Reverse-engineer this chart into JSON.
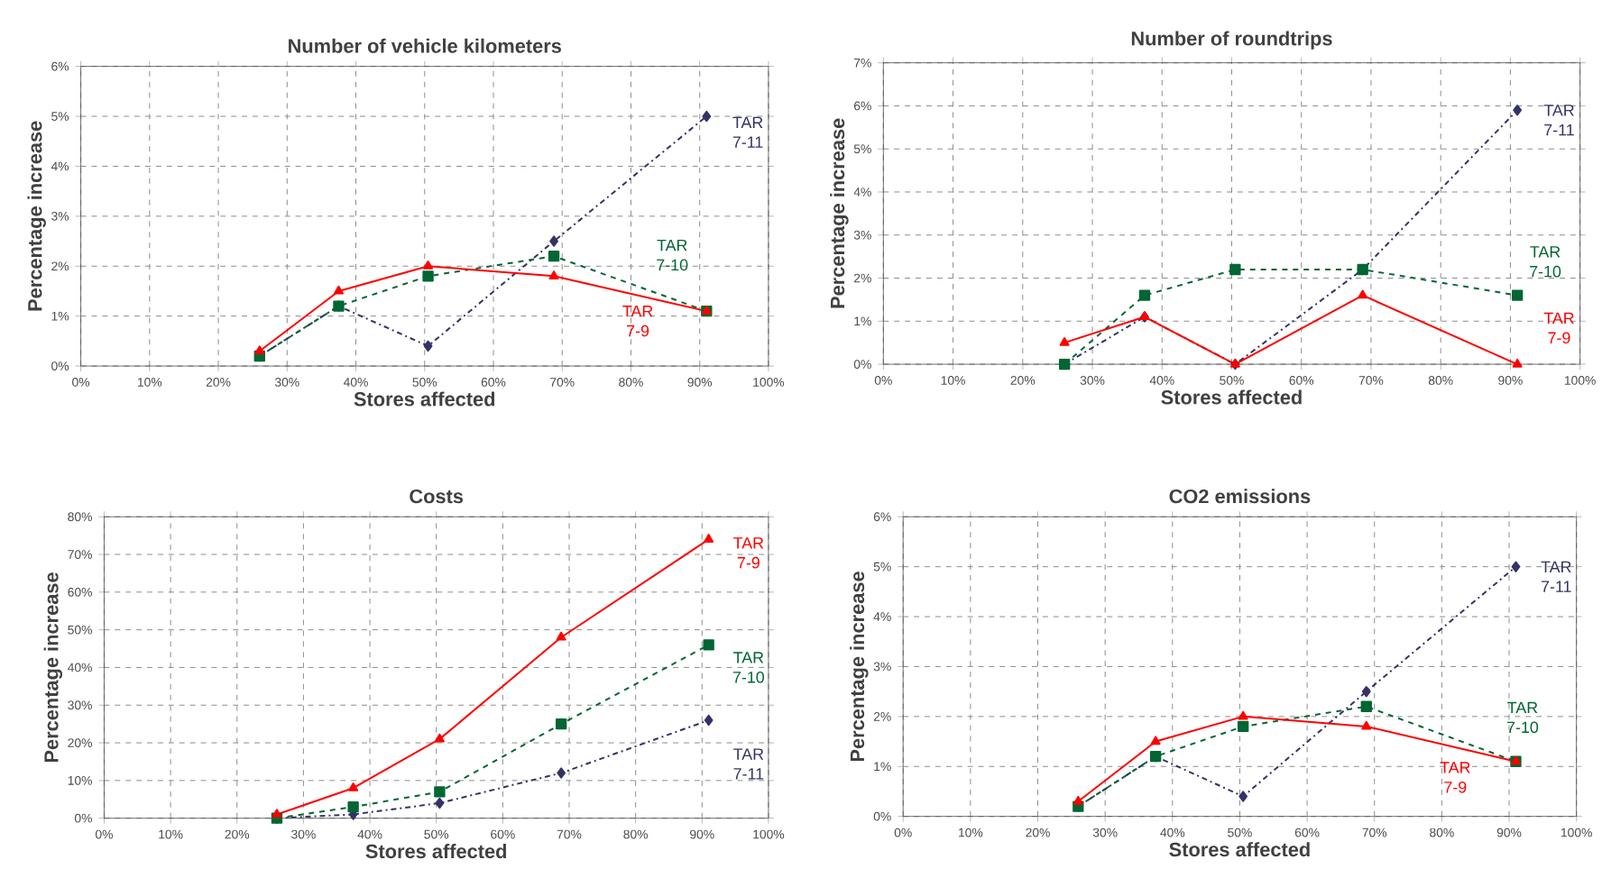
{
  "chart_data": [
    {
      "type": "line",
      "title": "Number of vehicle kilometers",
      "xlabel": "Stores affected",
      "ylabel": "Percentage increase",
      "x": [
        26,
        37.5,
        50.5,
        68.8,
        91
      ],
      "xlim": [
        0,
        100
      ],
      "ylim": [
        0,
        6
      ],
      "grid": true,
      "xticks": [
        {
          "value": 0,
          "label": "0%"
        },
        {
          "value": 10,
          "label": "10%"
        },
        {
          "value": 20,
          "label": "20%"
        },
        {
          "value": 30,
          "label": "30%"
        },
        {
          "value": 40,
          "label": "40%"
        },
        {
          "value": 50,
          "label": "50%"
        },
        {
          "value": 60,
          "label": "60%"
        },
        {
          "value": 70,
          "label": "70%"
        },
        {
          "value": 80,
          "label": "80%"
        },
        {
          "value": 90,
          "label": "90%"
        },
        {
          "value": 100,
          "label": "100%"
        }
      ],
      "yticks": [
        {
          "value": 0,
          "label": "0%"
        },
        {
          "value": 1,
          "label": "1%"
        },
        {
          "value": 2,
          "label": "2%"
        },
        {
          "value": 3,
          "label": "3%"
        },
        {
          "value": 4,
          "label": "4%"
        },
        {
          "value": 5,
          "label": "5%"
        },
        {
          "value": 6,
          "label": "6%"
        }
      ],
      "series": [
        {
          "name": "TAR 7-11",
          "color": "#333366",
          "marker": "diamond",
          "line_style": "dotted",
          "values": [
            0.2,
            1.2,
            0.4,
            2.5,
            5.0
          ]
        },
        {
          "name": "TAR 7-10",
          "color": "#006633",
          "marker": "square",
          "line_style": "dashed",
          "values": [
            0.2,
            1.2,
            1.8,
            2.2,
            1.1
          ]
        },
        {
          "name": "TAR 7-9",
          "color": "#ff0000",
          "marker": "triangle",
          "line_style": "solid",
          "values": [
            0.3,
            1.5,
            2.0,
            1.8,
            1.1
          ]
        }
      ]
    },
    {
      "type": "line",
      "title": "Number of roundtrips",
      "xlabel": "Stores affected",
      "ylabel": "Percentage increase",
      "x": [
        26,
        37.5,
        50.5,
        68.8,
        91
      ],
      "xlim": [
        0,
        100
      ],
      "ylim": [
        0,
        7
      ],
      "grid": true,
      "xticks": [
        {
          "value": 0,
          "label": "0%"
        },
        {
          "value": 10,
          "label": "10%"
        },
        {
          "value": 20,
          "label": "20%"
        },
        {
          "value": 30,
          "label": "30%"
        },
        {
          "value": 40,
          "label": "40%"
        },
        {
          "value": 50,
          "label": "50%"
        },
        {
          "value": 60,
          "label": "60%"
        },
        {
          "value": 70,
          "label": "70%"
        },
        {
          "value": 80,
          "label": "80%"
        },
        {
          "value": 90,
          "label": "90%"
        },
        {
          "value": 100,
          "label": "100%"
        }
      ],
      "yticks": [
        {
          "value": 0,
          "label": "0%"
        },
        {
          "value": 1,
          "label": "1%"
        },
        {
          "value": 2,
          "label": "2%"
        },
        {
          "value": 3,
          "label": "3%"
        },
        {
          "value": 4,
          "label": "4%"
        },
        {
          "value": 5,
          "label": "5%"
        },
        {
          "value": 6,
          "label": "6%"
        },
        {
          "value": 7,
          "label": "7%"
        }
      ],
      "series": [
        {
          "name": "TAR 7-11",
          "color": "#333366",
          "marker": "diamond",
          "line_style": "dotted",
          "values": [
            0,
            1.1,
            0,
            2.2,
            5.9
          ]
        },
        {
          "name": "TAR 7-10",
          "color": "#006633",
          "marker": "square",
          "line_style": "dashed",
          "values": [
            0,
            1.6,
            2.2,
            2.2,
            1.6
          ]
        },
        {
          "name": "TAR 7-9",
          "color": "#ff0000",
          "marker": "triangle",
          "line_style": "solid",
          "values": [
            0.5,
            1.1,
            0,
            1.6,
            0
          ]
        }
      ]
    },
    {
      "type": "line",
      "title": "Costs",
      "xlabel": "Stores affected",
      "ylabel": "Percentage increase",
      "x": [
        26,
        37.5,
        50.5,
        68.8,
        91
      ],
      "xlim": [
        0,
        100
      ],
      "ylim": [
        0,
        80
      ],
      "grid": true,
      "xticks": [
        {
          "value": 0,
          "label": "0%"
        },
        {
          "value": 10,
          "label": "10%"
        },
        {
          "value": 20,
          "label": "20%"
        },
        {
          "value": 30,
          "label": "30%"
        },
        {
          "value": 40,
          "label": "40%"
        },
        {
          "value": 50,
          "label": "50%"
        },
        {
          "value": 60,
          "label": "60%"
        },
        {
          "value": 70,
          "label": "70%"
        },
        {
          "value": 80,
          "label": "80%"
        },
        {
          "value": 90,
          "label": "90%"
        },
        {
          "value": 100,
          "label": "100%"
        }
      ],
      "yticks": [
        {
          "value": 0,
          "label": "0%"
        },
        {
          "value": 10,
          "label": "10%"
        },
        {
          "value": 20,
          "label": "20%"
        },
        {
          "value": 30,
          "label": "30%"
        },
        {
          "value": 40,
          "label": "40%"
        },
        {
          "value": 50,
          "label": "50%"
        },
        {
          "value": 60,
          "label": "60%"
        },
        {
          "value": 70,
          "label": "70%"
        },
        {
          "value": 80,
          "label": "80%"
        }
      ],
      "series": [
        {
          "name": "TAR 7-11",
          "color": "#333366",
          "marker": "diamond",
          "line_style": "dotted",
          "values": [
            0,
            1,
            4,
            12,
            26
          ]
        },
        {
          "name": "TAR 7-10",
          "color": "#006633",
          "marker": "square",
          "line_style": "dashed",
          "values": [
            0,
            3,
            7,
            25,
            46
          ]
        },
        {
          "name": "TAR 7-9",
          "color": "#ff0000",
          "marker": "triangle",
          "line_style": "solid",
          "values": [
            1,
            8,
            21,
            48,
            74
          ]
        }
      ]
    },
    {
      "type": "line",
      "title": "CO2 emissions",
      "xlabel": "Stores affected",
      "ylabel": "Percentage increase",
      "x": [
        26,
        37.5,
        50.5,
        68.8,
        91
      ],
      "xlim": [
        0,
        100
      ],
      "ylim": [
        0,
        6
      ],
      "grid": true,
      "xticks": [
        {
          "value": 0,
          "label": "0%"
        },
        {
          "value": 10,
          "label": "10%"
        },
        {
          "value": 20,
          "label": "20%"
        },
        {
          "value": 30,
          "label": "30%"
        },
        {
          "value": 40,
          "label": "40%"
        },
        {
          "value": 50,
          "label": "50%"
        },
        {
          "value": 60,
          "label": "60%"
        },
        {
          "value": 70,
          "label": "70%"
        },
        {
          "value": 80,
          "label": "80%"
        },
        {
          "value": 90,
          "label": "90%"
        },
        {
          "value": 100,
          "label": "100%"
        }
      ],
      "yticks": [
        {
          "value": 0,
          "label": "0%"
        },
        {
          "value": 1,
          "label": "1%"
        },
        {
          "value": 2,
          "label": "2%"
        },
        {
          "value": 3,
          "label": "3%"
        },
        {
          "value": 4,
          "label": "4%"
        },
        {
          "value": 5,
          "label": "5%"
        },
        {
          "value": 6,
          "label": "6%"
        }
      ],
      "series": [
        {
          "name": "TAR 7-11",
          "color": "#333366",
          "marker": "diamond",
          "line_style": "dotted",
          "values": [
            0.2,
            1.2,
            0.4,
            2.5,
            5.0
          ]
        },
        {
          "name": "TAR 7-10",
          "color": "#006633",
          "marker": "square",
          "line_style": "dashed",
          "values": [
            0.2,
            1.2,
            1.8,
            2.2,
            1.1
          ]
        },
        {
          "name": "TAR 7-9",
          "color": "#ff0000",
          "marker": "triangle",
          "line_style": "solid",
          "values": [
            0.3,
            1.5,
            2.0,
            1.8,
            1.1
          ]
        }
      ]
    }
  ]
}
